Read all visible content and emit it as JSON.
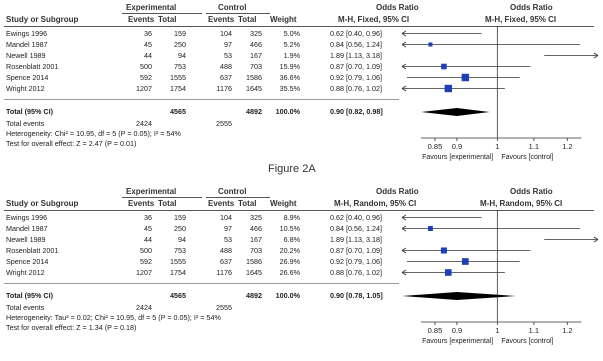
{
  "colors": {
    "marker": "#1f3fb5",
    "diamond": "#000000",
    "line": "#333333",
    "text": "#222222"
  },
  "figure_caption": "Figure 2A",
  "headers": {
    "experimental": "Experimental",
    "control": "Control",
    "study": "Study or Subgroup",
    "events": "Events",
    "total": "Total",
    "weight": "Weight",
    "odds_ratio": "Odds Ratio"
  },
  "panels": [
    {
      "method": "M-H, Fixed, 95% CI",
      "method_plot": "M-H, Fixed, 95% CI",
      "studies": [
        {
          "name": "Ewings 1996",
          "e_ev": "36",
          "e_tot": "159",
          "c_ev": "104",
          "c_tot": "325",
          "weight": "5.0%",
          "ci": "0.62 [0.40, 0.96]"
        },
        {
          "name": "Mandel 1987",
          "e_ev": "45",
          "e_tot": "250",
          "c_ev": "97",
          "c_tot": "466",
          "weight": "5.2%",
          "ci": "0.84 [0.56, 1.24]"
        },
        {
          "name": "Newell 1989",
          "e_ev": "44",
          "e_tot": "94",
          "c_ev": "53",
          "c_tot": "167",
          "weight": "1.9%",
          "ci": "1.89 [1.13, 3.18]"
        },
        {
          "name": "Rosenblatt 2001",
          "e_ev": "500",
          "e_tot": "753",
          "c_ev": "488",
          "c_tot": "703",
          "weight": "15.9%",
          "ci": "0.87 [0.70, 1.09]"
        },
        {
          "name": "Spence 2014",
          "e_ev": "592",
          "e_tot": "1555",
          "c_ev": "637",
          "c_tot": "1586",
          "weight": "36.6%",
          "ci": "0.92 [0.79, 1.06]"
        },
        {
          "name": "Wright 2012",
          "e_ev": "1207",
          "e_tot": "1754",
          "c_ev": "1176",
          "c_tot": "1645",
          "weight": "35.5%",
          "ci": "0.88 [0.76, 1.02]"
        }
      ],
      "total": {
        "label": "Total (95% CI)",
        "e_tot": "4565",
        "c_tot": "4892",
        "weight": "100.0%",
        "ci": "0.90 [0.82, 0.98]"
      },
      "total_events": {
        "label": "Total events",
        "e": "2424",
        "c": "2555"
      },
      "heterogeneity": "Heterogeneity: Chi² = 10.95, df = 5 (P = 0.05); I² = 54%",
      "overall_effect": "Test for overall effect: Z = 2.47 (P = 0.01)",
      "forest": {
        "studies": [
          {
            "or": 0.62,
            "lo": 0.4,
            "hi": 0.96,
            "weight": 5.0
          },
          {
            "or": 0.84,
            "lo": 0.56,
            "hi": 1.24,
            "weight": 5.2
          },
          {
            "or": 1.89,
            "lo": 1.13,
            "hi": 3.18,
            "weight": 1.9
          },
          {
            "or": 0.87,
            "lo": 0.7,
            "hi": 1.09,
            "weight": 15.9
          },
          {
            "or": 0.92,
            "lo": 0.79,
            "hi": 1.06,
            "weight": 36.6
          },
          {
            "or": 0.88,
            "lo": 0.76,
            "hi": 1.02,
            "weight": 35.5
          }
        ],
        "pooled": {
          "or": 0.9,
          "lo": 0.82,
          "hi": 0.98
        },
        "xlim": [
          0.78,
          1.3
        ],
        "ticks": [
          "0.85",
          "0.9",
          "1",
          "1.1",
          "1.2"
        ],
        "tick_values": [
          0.85,
          0.9,
          1.0,
          1.1,
          1.2
        ],
        "favours_left": "Favours [experimental]",
        "favours_right": "Favours [control]"
      }
    },
    {
      "method": "M-H, Random, 95% CI",
      "method_plot": "M-H, Random, 95% CI",
      "studies": [
        {
          "name": "Ewings 1996",
          "e_ev": "36",
          "e_tot": "159",
          "c_ev": "104",
          "c_tot": "325",
          "weight": "8.9%",
          "ci": "0.62 [0.40, 0.96]"
        },
        {
          "name": "Mandel 1987",
          "e_ev": "45",
          "e_tot": "250",
          "c_ev": "97",
          "c_tot": "466",
          "weight": "10.5%",
          "ci": "0.84 [0.56, 1.24]"
        },
        {
          "name": "Newell 1989",
          "e_ev": "44",
          "e_tot": "94",
          "c_ev": "53",
          "c_tot": "167",
          "weight": "6.8%",
          "ci": "1.89 [1.13, 3.18]"
        },
        {
          "name": "Rosenblatt 2001",
          "e_ev": "500",
          "e_tot": "753",
          "c_ev": "488",
          "c_tot": "703",
          "weight": "20.2%",
          "ci": "0.87 [0.70, 1.09]"
        },
        {
          "name": "Spence 2014",
          "e_ev": "592",
          "e_tot": "1555",
          "c_ev": "637",
          "c_tot": "1586",
          "weight": "26.9%",
          "ci": "0.92 [0.79, 1.06]"
        },
        {
          "name": "Wright 2012",
          "e_ev": "1207",
          "e_tot": "1754",
          "c_ev": "1176",
          "c_tot": "1645",
          "weight": "26.6%",
          "ci": "0.88 [0.76, 1.02]"
        }
      ],
      "total": {
        "label": "Total (95% CI)",
        "e_tot": "4565",
        "c_tot": "4892",
        "weight": "100.0%",
        "ci": "0.90 [0.78, 1.05]"
      },
      "total_events": {
        "label": "Total events",
        "e": "2424",
        "c": "2555"
      },
      "heterogeneity": "Heterogeneity: Tau² = 0.02; Chi² = 10.95, df = 5 (P = 0.05); I² = 54%",
      "overall_effect": "Test for overall effect: Z = 1.34 (P = 0.18)",
      "forest": {
        "studies": [
          {
            "or": 0.62,
            "lo": 0.4,
            "hi": 0.96,
            "weight": 8.9
          },
          {
            "or": 0.84,
            "lo": 0.56,
            "hi": 1.24,
            "weight": 10.5
          },
          {
            "or": 1.89,
            "lo": 1.13,
            "hi": 3.18,
            "weight": 6.8
          },
          {
            "or": 0.87,
            "lo": 0.7,
            "hi": 1.09,
            "weight": 20.2
          },
          {
            "or": 0.92,
            "lo": 0.79,
            "hi": 1.06,
            "weight": 26.9
          },
          {
            "or": 0.88,
            "lo": 0.76,
            "hi": 1.02,
            "weight": 26.6
          }
        ],
        "pooled": {
          "or": 0.9,
          "lo": 0.78,
          "hi": 1.05
        },
        "xlim": [
          0.78,
          1.3
        ],
        "ticks": [
          "0.85",
          "0.9",
          "1",
          "1.1",
          "1.2"
        ],
        "tick_values": [
          0.85,
          0.9,
          1.0,
          1.1,
          1.2
        ],
        "favours_left": "Favours [experimental]",
        "favours_right": "Favours [control]"
      }
    }
  ]
}
